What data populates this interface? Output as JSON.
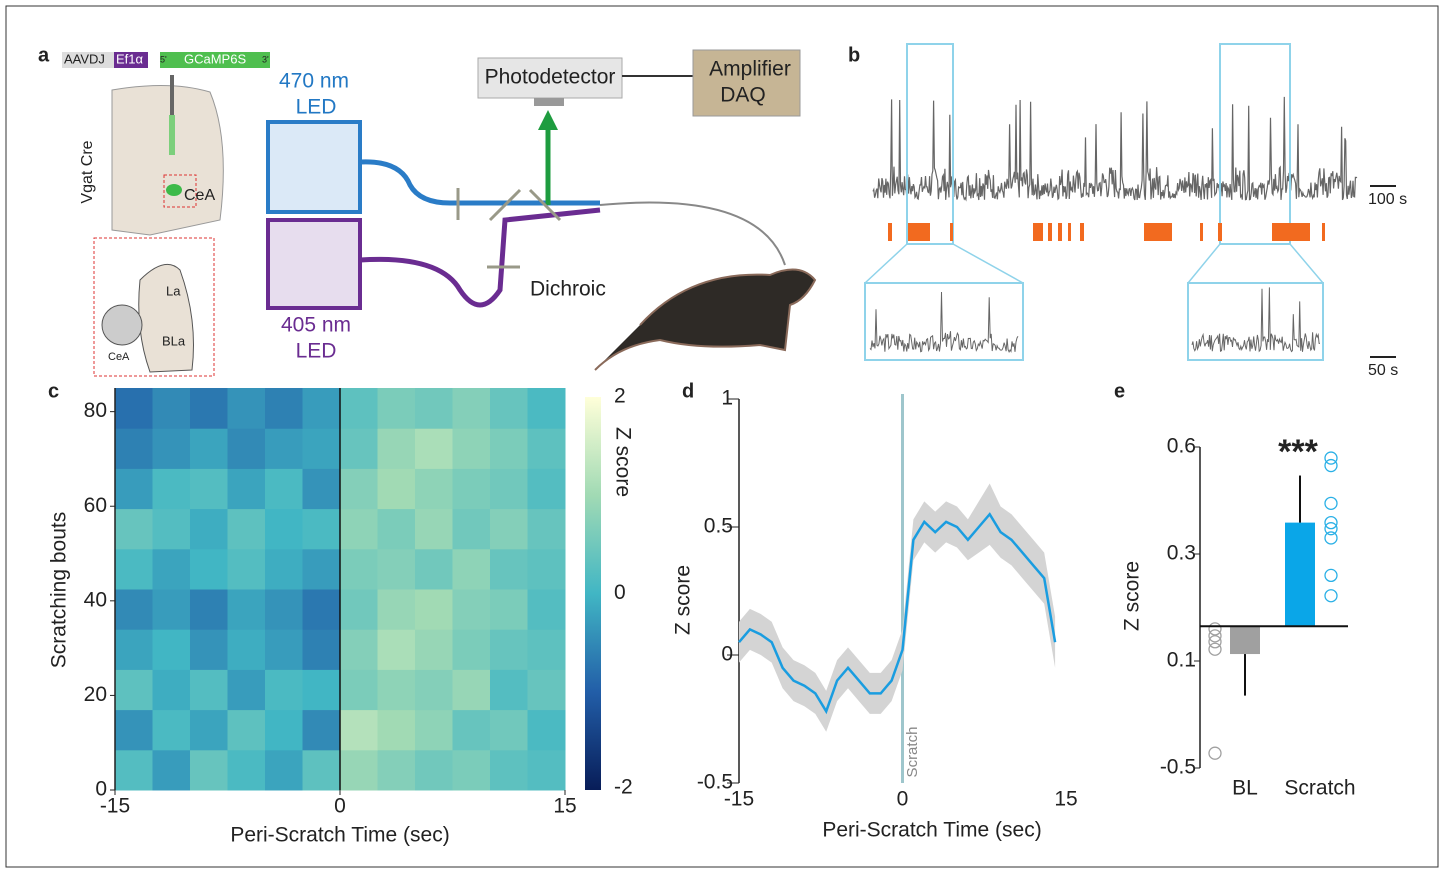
{
  "panel_a": {
    "letter": "a",
    "construct": [
      "AAVDJ",
      "Ef1α",
      "GCaMP6S"
    ],
    "ends": [
      "5'",
      "3'"
    ],
    "mouse_line": "Vgat Cre",
    "region": "CeA",
    "inset": [
      "La",
      "BLa",
      "CeA"
    ],
    "led_blue": [
      "470 nm",
      "LED"
    ],
    "led_violet": [
      "405 nm",
      "LED"
    ],
    "detector": "Photodetector",
    "amplifier": [
      "Amplifier",
      "DAQ"
    ],
    "dichroic": "Dichroic"
  },
  "panel_b": {
    "letter": "b",
    "scale_top": "100 s",
    "scale_bottom": "50 s"
  },
  "chart_data": [
    {
      "type": "heatmap",
      "letter": "c",
      "xlabel": "Peri-Scratch Time (sec)",
      "ylabel": "Scratching bouts",
      "xlim": [
        -15,
        15
      ],
      "xticks": [
        -15,
        0,
        15
      ],
      "ylim": [
        0,
        85
      ],
      "yticks": [
        0,
        20,
        40,
        60,
        80
      ],
      "vline": 0,
      "clim": [
        -2,
        2
      ],
      "cbar_ticks": [
        -2,
        0,
        2
      ],
      "cbar_label": "Z score",
      "values": [
        [
          0.2,
          -0.3,
          0.4,
          0.1,
          -0.2,
          0.3,
          0.9,
          0.7,
          0.5,
          0.6,
          0.3,
          0.2
        ],
        [
          -0.4,
          0.1,
          -0.2,
          0.3,
          0.0,
          -0.5,
          1.2,
          1.0,
          0.8,
          0.4,
          0.5,
          0.1
        ],
        [
          0.3,
          -0.1,
          0.2,
          -0.3,
          0.1,
          0.0,
          0.6,
          0.8,
          0.7,
          0.9,
          0.2,
          0.4
        ],
        [
          -0.2,
          0.0,
          -0.4,
          -0.1,
          -0.3,
          -0.6,
          0.7,
          1.1,
          0.9,
          0.6,
          0.4,
          0.3
        ],
        [
          -0.5,
          -0.3,
          -0.6,
          -0.2,
          -0.4,
          -0.7,
          0.5,
          0.9,
          1.0,
          0.7,
          0.6,
          0.2
        ],
        [
          0.1,
          -0.2,
          0.0,
          0.2,
          -0.1,
          -0.3,
          0.6,
          0.7,
          0.5,
          0.8,
          0.4,
          0.3
        ],
        [
          0.4,
          0.2,
          -0.1,
          0.3,
          0.0,
          0.1,
          0.8,
          0.6,
          0.9,
          0.5,
          0.7,
          0.4
        ],
        [
          -0.3,
          0.1,
          0.2,
          -0.2,
          0.1,
          -0.4,
          0.7,
          1.0,
          0.8,
          0.6,
          0.5,
          0.2
        ],
        [
          -0.6,
          -0.4,
          -0.2,
          -0.5,
          -0.3,
          -0.2,
          0.4,
          0.9,
          1.1,
          0.8,
          0.6,
          0.3
        ],
        [
          -0.8,
          -0.5,
          -0.7,
          -0.4,
          -0.6,
          -0.3,
          0.3,
          0.6,
          0.5,
          0.7,
          0.4,
          0.1
        ]
      ]
    },
    {
      "type": "line",
      "letter": "d",
      "xlabel": "Peri-Scratch Time (sec)",
      "ylabel": "Z score",
      "annotation": "Scratch",
      "vline": 0,
      "xlim": [
        -15,
        15
      ],
      "xticks": [
        -15,
        0,
        15
      ],
      "ylim": [
        -0.5,
        1
      ],
      "yticks": [
        -0.5,
        0,
        0.5,
        1
      ],
      "x": [
        -15,
        -14,
        -13,
        -12,
        -11,
        -10,
        -9,
        -8,
        -7,
        -6,
        -5,
        -4,
        -3,
        -2,
        -1,
        0,
        1,
        2,
        3,
        4,
        5,
        6,
        7,
        8,
        9,
        10,
        11,
        12,
        13,
        14
      ],
      "series": [
        {
          "color": "#1a9de0",
          "band_color": "#d4d4d4",
          "values": [
            0.05,
            0.1,
            0.08,
            0.05,
            -0.05,
            -0.1,
            -0.12,
            -0.15,
            -0.22,
            -0.1,
            -0.05,
            -0.1,
            -0.15,
            -0.15,
            -0.1,
            0.02,
            0.45,
            0.52,
            0.48,
            0.52,
            0.5,
            0.45,
            0.5,
            0.55,
            0.48,
            0.45,
            0.4,
            0.35,
            0.3,
            0.05
          ],
          "errors": [
            0.08,
            0.08,
            0.08,
            0.08,
            0.08,
            0.08,
            0.08,
            0.08,
            0.08,
            0.08,
            0.08,
            0.08,
            0.08,
            0.08,
            0.08,
            0.08,
            0.08,
            0.08,
            0.08,
            0.08,
            0.08,
            0.08,
            0.1,
            0.12,
            0.1,
            0.1,
            0.1,
            0.1,
            0.1,
            0.1
          ]
        }
      ]
    },
    {
      "type": "bar",
      "letter": "e",
      "ylabel": "Z score",
      "annotation": "***",
      "scale": "piecewise",
      "baseline": 0.165,
      "categories": [
        "BL",
        "Scratch"
      ],
      "values": [
        0.113,
        0.388
      ],
      "errors": [
        0.207,
        0.132
      ],
      "colors": [
        "#a0a0a0",
        "#0aa6e8"
      ],
      "point_colors": [
        "#a0a0a0",
        "#2ab0e6"
      ],
      "points": [
        [
          0.16,
          0.147,
          0.136,
          0.122,
          -0.417
        ],
        [
          0.569,
          0.548,
          0.442,
          0.388,
          0.371,
          0.345,
          0.26,
          0.222
        ]
      ],
      "ylim": [
        -0.5,
        0.6
      ],
      "yticks": [
        -0.5,
        0.1,
        0.3,
        0.6
      ]
    }
  ]
}
